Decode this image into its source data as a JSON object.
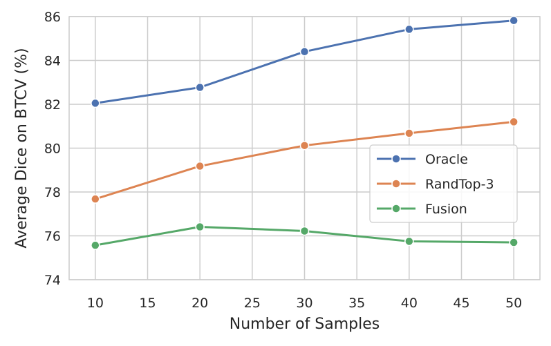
{
  "chart_data": {
    "type": "line",
    "title": "",
    "xlabel": "Number of Samples",
    "ylabel": "Average Dice on BTCV (%)",
    "x": [
      10,
      20,
      30,
      40,
      50
    ],
    "xlim": [
      7.5,
      52.5
    ],
    "ylim": [
      74,
      86
    ],
    "xticks": [
      10,
      15,
      20,
      25,
      30,
      35,
      40,
      45,
      50
    ],
    "yticks": [
      74,
      76,
      78,
      80,
      82,
      84,
      86
    ],
    "grid": true,
    "legend_position": "center-right",
    "series": [
      {
        "name": "Oracle",
        "color": "#4c72b0",
        "values": [
          82.05,
          82.77,
          84.4,
          85.42,
          85.82
        ]
      },
      {
        "name": "RandTop-3",
        "color": "#dd8452",
        "values": [
          77.68,
          79.18,
          80.12,
          80.68,
          81.2
        ]
      },
      {
        "name": "Fusion",
        "color": "#55a868",
        "values": [
          75.57,
          76.41,
          76.22,
          75.75,
          75.7
        ]
      }
    ]
  }
}
